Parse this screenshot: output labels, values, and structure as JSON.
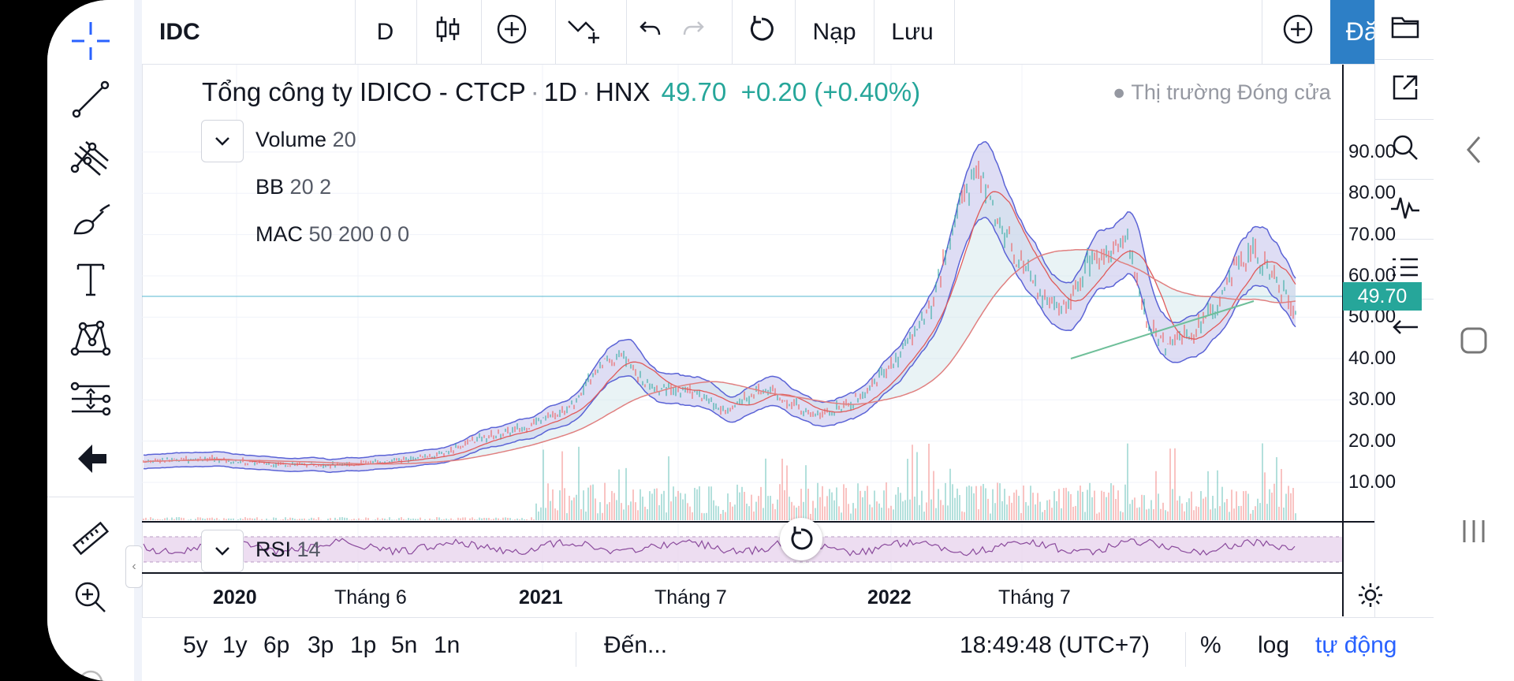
{
  "toolbar": {
    "symbol": "IDC",
    "interval": "D",
    "load_label": "Nạp",
    "save_label": "Lưu",
    "signup_label": "Đăng"
  },
  "legend": {
    "company": "Tổng công ty IDICO - CTCP",
    "interval": "1D",
    "exchange": "HNX",
    "last_price": "49.70",
    "change": "+0.20 (+0.40%)",
    "market_status": "Thị trường Đóng cửa"
  },
  "indicators": {
    "volume": {
      "name": "Volume",
      "params": "20"
    },
    "bb": {
      "name": "BB",
      "params": "20 2"
    },
    "mac": {
      "name": "MAC",
      "params": "50 200 0 0"
    },
    "rsi": {
      "name": "RSI",
      "params": "14"
    }
  },
  "price_axis": {
    "ticks": [
      "90.00",
      "80.00",
      "70.00",
      "60.00",
      "50.00",
      "40.00",
      "30.00",
      "20.00",
      "10.00"
    ],
    "current_label": "49.70"
  },
  "time_axis": {
    "ticks": [
      {
        "label": "2020",
        "bold": true
      },
      {
        "label": "Tháng 6",
        "bold": false
      },
      {
        "label": "2021",
        "bold": true
      },
      {
        "label": "Tháng 7",
        "bold": false
      },
      {
        "label": "2022",
        "bold": true
      },
      {
        "label": "Tháng 7",
        "bold": false
      }
    ]
  },
  "bottom_bar": {
    "ranges": [
      "5y",
      "1y",
      "6p",
      "3p",
      "1p",
      "5n",
      "1n"
    ],
    "goto_label": "Đến...",
    "clock": "18:49:48 (UTC+7)",
    "percent_label": "%",
    "log_label": "log",
    "auto_label": "tự động"
  },
  "colors": {
    "up": "#26a69a",
    "down": "#ef5350",
    "accent": "#2962ff",
    "signup_bg": "#2d7fc6",
    "bb_fill": "#c8c6ec",
    "rsi_band": "#e8d4ee"
  }
}
